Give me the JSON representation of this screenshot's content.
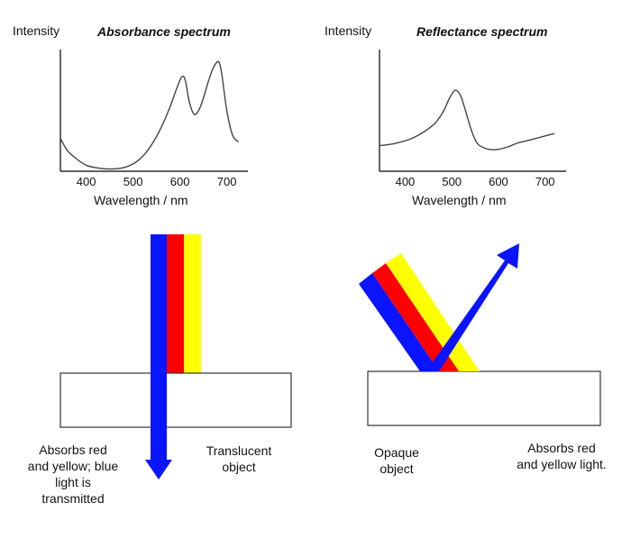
{
  "chart_data": [
    {
      "type": "line",
      "title": "Absorbance spectrum",
      "ylabel": "Intensity",
      "xlabel": "Wavelength / nm",
      "xticks": [
        "400",
        "500",
        "600",
        "700"
      ],
      "xlim": [
        345,
        745
      ],
      "ylim": [
        0,
        1
      ],
      "x": [
        345,
        360,
        380,
        400,
        420,
        440,
        460,
        480,
        500,
        520,
        540,
        560,
        580,
        595,
        605,
        612,
        620,
        630,
        640,
        650,
        660,
        670,
        680,
        685,
        690,
        700,
        712,
        725
      ],
      "series": [
        {
          "values": [
            0.27,
            0.17,
            0.1,
            0.05,
            0.03,
            0.02,
            0.02,
            0.03,
            0.06,
            0.12,
            0.22,
            0.36,
            0.54,
            0.7,
            0.78,
            0.74,
            0.57,
            0.47,
            0.5,
            0.6,
            0.73,
            0.84,
            0.9,
            0.88,
            0.78,
            0.5,
            0.3,
            0.24
          ]
        }
      ]
    },
    {
      "type": "line",
      "title": "Reflectance spectrum",
      "ylabel": "Intensity",
      "xlabel": "Wavelength / nm",
      "xticks": [
        "400",
        "500",
        "600",
        "700"
      ],
      "xlim": [
        345,
        745
      ],
      "ylim": [
        0,
        1
      ],
      "x": [
        345,
        380,
        420,
        460,
        480,
        495,
        505,
        512,
        520,
        530,
        540,
        550,
        560,
        580,
        600,
        620,
        640,
        660,
        680,
        700,
        720
      ],
      "series": [
        {
          "values": [
            0.21,
            0.23,
            0.28,
            0.38,
            0.48,
            0.6,
            0.66,
            0.66,
            0.61,
            0.49,
            0.36,
            0.26,
            0.21,
            0.18,
            0.18,
            0.2,
            0.23,
            0.25,
            0.27,
            0.29,
            0.31
          ]
        }
      ]
    }
  ],
  "left_panel": {
    "caption_absorbs": "Absorbs red\nand yellow; blue\nlight is\ntransmitted",
    "caption_object": "Translucent\nobject"
  },
  "right_panel": {
    "caption_object": "Opaque\nobject",
    "caption_absorbs": "Absorbs red\nand yellow light."
  },
  "colors": {
    "blue": "#0a14ff",
    "red": "#ff0000",
    "yellow": "#ffff00",
    "curve": "#444444",
    "axis": "#000000"
  }
}
